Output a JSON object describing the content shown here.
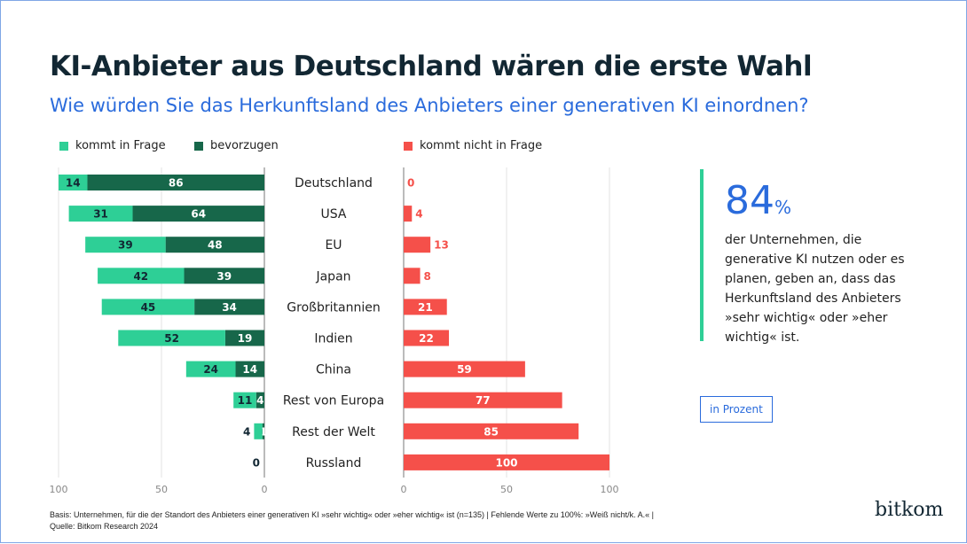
{
  "title": "KI-Anbieter aus Deutschland wären die erste Wahl",
  "subtitle": "Wie würden Sie das Herkunftsland des Anbieters einer generativen KI einordnen?",
  "kpi": {
    "value": "84",
    "unit": "%",
    "text": "der Unternehmen, die generative KI nutzen oder es planen, geben an, dass das Herkunftsland des Anbieters »sehr wichtig« oder »eher wichtig« ist."
  },
  "unit_label": "in Prozent",
  "footer": {
    "basis": "Basis: Unternehmen, für die der Standort des Anbieters einer generativen KI »sehr wichtig« oder »eher wichtig« ist (n=135) | Fehlende Werte zu 100%: »Weiß nicht/k. A.« |",
    "source": "Quelle: Bitkom Research 2024"
  },
  "logo": "bitkom",
  "colors": {
    "kommt_in_frage": "#2ecf96",
    "bevorzugen": "#17674a",
    "nicht": "#f5504a"
  },
  "chart_data": {
    "type": "bar",
    "categories": [
      "Deutschland",
      "USA",
      "EU",
      "Japan",
      "Großbritannien",
      "Indien",
      "China",
      "Rest von Europa",
      "Rest der Welt",
      "Russland"
    ],
    "series": [
      {
        "name": "kommt in Frage",
        "values": [
          14,
          31,
          39,
          42,
          45,
          52,
          24,
          11,
          4,
          0
        ]
      },
      {
        "name": "bevorzugen",
        "values": [
          86,
          64,
          48,
          39,
          34,
          19,
          14,
          4,
          1,
          0
        ]
      },
      {
        "name": "kommt nicht in Frage",
        "values": [
          0,
          4,
          13,
          8,
          21,
          22,
          59,
          77,
          85,
          100
        ]
      }
    ],
    "left_ticks": [
      "100",
      "50",
      "0"
    ],
    "right_ticks": [
      "0",
      "50",
      "100"
    ],
    "xlim": [
      0,
      100
    ],
    "grid": true,
    "legend": "top"
  }
}
